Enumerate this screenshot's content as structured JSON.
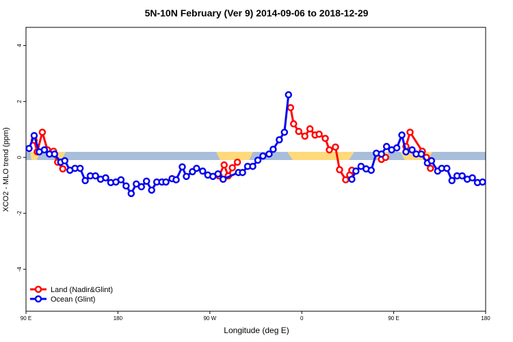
{
  "chart_data": {
    "type": "line",
    "title": "5N-10N February (Ver 9)   2014-09-06 to 2018-12-29",
    "x_label": "Longitude (deg E)",
    "y_label": "XCO2 - MLO trend (ppm)",
    "xlim": [
      90,
      540
    ],
    "xticks": [
      {
        "value": 90,
        "label": "90 E"
      },
      {
        "value": 180,
        "label": "180"
      },
      {
        "value": 270,
        "label": "90 W"
      },
      {
        "value": 360,
        "label": "0"
      },
      {
        "value": 450,
        "label": "90 E"
      },
      {
        "value": 540,
        "label": "180"
      }
    ],
    "ylim": [
      -5.5,
      4.65
    ],
    "yticks": [
      -4,
      -2,
      0,
      2,
      4
    ],
    "legend": "bottom-left",
    "series": [
      {
        "name": "Land (Nadir&Glint)",
        "color": "#ff0000",
        "x": [
          98,
          101,
          106,
          111,
          117,
          121,
          126,
          200,
          279,
          284,
          288,
          292,
          297,
          320,
          349,
          352,
          357,
          363,
          368,
          373,
          377,
          383,
          387,
          393,
          397,
          403,
          407,
          409,
          420,
          438,
          442,
          450,
          462,
          466,
          478,
          482,
          486
        ],
        "values": [
          0.61,
          0.2,
          0.9,
          0.27,
          0.22,
          -0.17,
          -0.41,
          null,
          -0.66,
          -0.27,
          -0.66,
          -0.37,
          -0.17,
          null,
          1.78,
          1.2,
          0.93,
          0.76,
          1.02,
          0.8,
          0.83,
          0.68,
          0.27,
          0.37,
          -0.44,
          -0.8,
          -0.63,
          -0.46,
          null,
          -0.07,
          0,
          null,
          0.39,
          0.9,
          0.22,
          0,
          -0.39
        ]
      },
      {
        "name": "Ocean (Glint)",
        "color": "#0000ee",
        "x": [
          93,
          98,
          103,
          108,
          113,
          118,
          124,
          128,
          133,
          138,
          143,
          148,
          153,
          158,
          163,
          168,
          173,
          178,
          183,
          188,
          193,
          198,
          203,
          208,
          213,
          218,
          223,
          227,
          233,
          237,
          243,
          247,
          253,
          257,
          263,
          268,
          273,
          278,
          283,
          298,
          302,
          307,
          312,
          317,
          322,
          328,
          332,
          338,
          343,
          347,
          380,
          409,
          413,
          418,
          423,
          428,
          433,
          438,
          443,
          448,
          453,
          458,
          462,
          468,
          472,
          477,
          483,
          487,
          493,
          497,
          502,
          507,
          512,
          517,
          522,
          527,
          532,
          537
        ],
        "values": [
          0.32,
          0.78,
          0.2,
          0.27,
          0.12,
          0.12,
          -0.17,
          -0.12,
          -0.46,
          -0.39,
          -0.39,
          -0.83,
          -0.66,
          -0.66,
          -0.78,
          -0.73,
          -0.9,
          -0.88,
          -0.8,
          -1.02,
          -1.29,
          -0.95,
          -1.05,
          -0.85,
          -1.17,
          -0.88,
          -0.88,
          -0.88,
          -0.76,
          -0.8,
          -0.34,
          -0.68,
          -0.51,
          -0.39,
          -0.49,
          -0.63,
          -0.68,
          -0.59,
          -0.78,
          -0.54,
          -0.54,
          -0.32,
          -0.32,
          -0.1,
          0.05,
          0.12,
          0.29,
          0.63,
          0.9,
          2.24,
          null,
          -0.78,
          -0.49,
          -0.32,
          -0.41,
          -0.46,
          0.15,
          0.12,
          0.39,
          0.27,
          0.34,
          0.8,
          0.2,
          0.27,
          0.12,
          0.12,
          -0.2,
          -0.12,
          -0.49,
          -0.39,
          -0.39,
          -0.83,
          -0.66,
          -0.66,
          -0.78,
          -0.73,
          -0.9,
          -0.88
        ]
      }
    ]
  }
}
